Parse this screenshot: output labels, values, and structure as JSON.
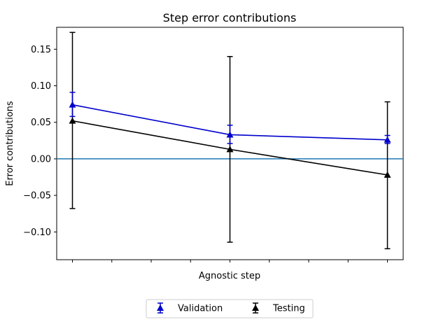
{
  "chart_data": {
    "type": "line",
    "title": "Step error contributions",
    "xlabel": "Agnostic step",
    "ylabel": "Error contributions",
    "ylim": [
      -0.138,
      0.18
    ],
    "yticks": [
      0.15,
      0.1,
      0.05,
      0.0,
      -0.05,
      -0.1
    ],
    "ytick_labels": [
      "0.15",
      "0.10",
      "0.05",
      "0.00",
      "−0.05",
      "−0.10"
    ],
    "x": [
      0,
      1,
      2
    ],
    "xlim": [
      -0.1,
      2.1
    ],
    "xticks": [
      0,
      0.25,
      0.5,
      0.75,
      1,
      1.25,
      1.5,
      1.75,
      2
    ],
    "reference_line": {
      "y": 0.0,
      "color": "#1f77b4"
    },
    "grid": false,
    "legend_position": "bottom-center, below plot",
    "series": [
      {
        "name": "Validation",
        "color": "#0000cc",
        "marker": "triangle",
        "values": [
          0.074,
          0.033,
          0.026
        ],
        "err_low": [
          0.058,
          0.021,
          0.021
        ],
        "err_high": [
          0.091,
          0.046,
          0.032
        ]
      },
      {
        "name": "Testing",
        "color": "#000000",
        "marker": "triangle",
        "values": [
          0.052,
          0.013,
          -0.022
        ],
        "err_low": [
          -0.068,
          -0.114,
          -0.123
        ],
        "err_high": [
          0.173,
          0.14,
          0.078
        ]
      }
    ]
  }
}
